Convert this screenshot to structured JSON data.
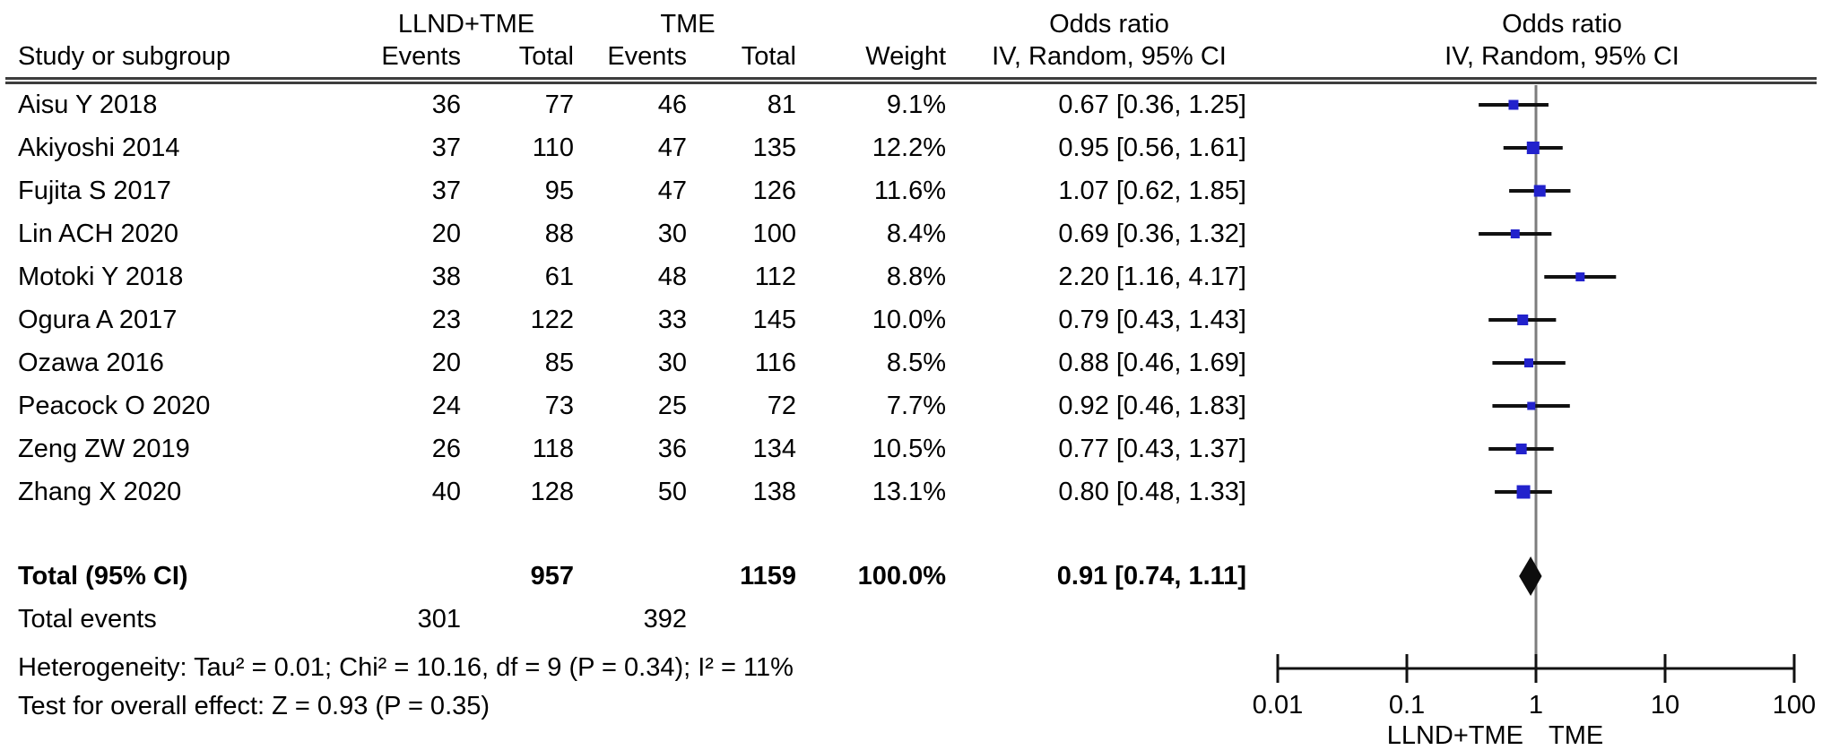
{
  "header": {
    "study_col": "Study or subgroup",
    "group1": "LLND+TME",
    "group2": "TME",
    "events_col": "Events",
    "total_col": "Total",
    "weight_col": "Weight",
    "or_title": "Odds ratio",
    "or_subtitle": "IV, Random, 95% CI",
    "plot_title": "Odds ratio",
    "plot_subtitle": "IV, Random, 95% CI"
  },
  "chart_data": {
    "type": "scatter",
    "subtype": "forest_plot",
    "effect_measure": "Odds ratio, IV, Random, 95% CI",
    "x_scale": "log10",
    "xlim": [
      0.01,
      100
    ],
    "x_ticks": [
      0.01,
      0.1,
      1,
      10,
      100
    ],
    "x_tick_labels": [
      "0.01",
      "0.1",
      "1",
      "10",
      "100"
    ],
    "favours_left": "LLND+TME",
    "favours_right": "TME",
    "studies": [
      {
        "name": "Aisu Y 2018",
        "events1": 36,
        "total1": 77,
        "events2": 46,
        "total2": 81,
        "weight": "9.1%",
        "weight_value": 9.1,
        "or": 0.67,
        "ci_low": 0.36,
        "ci_high": 1.25,
        "or_ci_label": "0.67 [0.36, 1.25]"
      },
      {
        "name": "Akiyoshi 2014",
        "events1": 37,
        "total1": 110,
        "events2": 47,
        "total2": 135,
        "weight": "12.2%",
        "weight_value": 12.2,
        "or": 0.95,
        "ci_low": 0.56,
        "ci_high": 1.61,
        "or_ci_label": "0.95 [0.56, 1.61]"
      },
      {
        "name": "Fujita S 2017",
        "events1": 37,
        "total1": 95,
        "events2": 47,
        "total2": 126,
        "weight": "11.6%",
        "weight_value": 11.6,
        "or": 1.07,
        "ci_low": 0.62,
        "ci_high": 1.85,
        "or_ci_label": "1.07 [0.62, 1.85]"
      },
      {
        "name": "Lin ACH 2020",
        "events1": 20,
        "total1": 88,
        "events2": 30,
        "total2": 100,
        "weight": "8.4%",
        "weight_value": 8.4,
        "or": 0.69,
        "ci_low": 0.36,
        "ci_high": 1.32,
        "or_ci_label": "0.69 [0.36, 1.32]"
      },
      {
        "name": "Motoki Y 2018",
        "events1": 38,
        "total1": 61,
        "events2": 48,
        "total2": 112,
        "weight": "8.8%",
        "weight_value": 8.8,
        "or": 2.2,
        "ci_low": 1.16,
        "ci_high": 4.17,
        "or_ci_label": "2.20 [1.16, 4.17]"
      },
      {
        "name": "Ogura A 2017",
        "events1": 23,
        "total1": 122,
        "events2": 33,
        "total2": 145,
        "weight": "10.0%",
        "weight_value": 10.0,
        "or": 0.79,
        "ci_low": 0.43,
        "ci_high": 1.43,
        "or_ci_label": "0.79 [0.43, 1.43]"
      },
      {
        "name": "Ozawa 2016",
        "events1": 20,
        "total1": 85,
        "events2": 30,
        "total2": 116,
        "weight": "8.5%",
        "weight_value": 8.5,
        "or": 0.88,
        "ci_low": 0.46,
        "ci_high": 1.69,
        "or_ci_label": "0.88 [0.46, 1.69]"
      },
      {
        "name": "Peacock O 2020",
        "events1": 24,
        "total1": 73,
        "events2": 25,
        "total2": 72,
        "weight": "7.7%",
        "weight_value": 7.7,
        "or": 0.92,
        "ci_low": 0.46,
        "ci_high": 1.83,
        "or_ci_label": "0.92 [0.46, 1.83]"
      },
      {
        "name": "Zeng ZW 2019",
        "events1": 26,
        "total1": 118,
        "events2": 36,
        "total2": 134,
        "weight": "10.5%",
        "weight_value": 10.5,
        "or": 0.77,
        "ci_low": 0.43,
        "ci_high": 1.37,
        "or_ci_label": "0.77 [0.43, 1.37]"
      },
      {
        "name": "Zhang X 2020",
        "events1": 40,
        "total1": 128,
        "events2": 50,
        "total2": 138,
        "weight": "13.1%",
        "weight_value": 13.1,
        "or": 0.8,
        "ci_low": 0.48,
        "ci_high": 1.33,
        "or_ci_label": "0.80 [0.48, 1.33]"
      }
    ],
    "total": {
      "label": "Total (95% CI)",
      "total1": 957,
      "total2": 1159,
      "weight": "100.0%",
      "or": 0.91,
      "ci_low": 0.74,
      "ci_high": 1.11,
      "or_ci_label": "0.91 [0.74, 1.11]"
    },
    "total_events": {
      "label": "Total events",
      "events1": 301,
      "events2": 392
    }
  },
  "footer": {
    "heterogeneity": "Heterogeneity: Tau² = 0.01; Chi² = 10.16, df = 9 (P = 0.34); I² = 11%",
    "overall_effect": "Test for overall effect: Z = 0.93 (P = 0.35)"
  },
  "colors": {
    "square": "#2222cc",
    "ci_line": "#111111",
    "diamond": "#0d0d0d",
    "no_effect_line": "#7d7d7d",
    "axis": "#111111",
    "text": "#000000",
    "rule": "#3d3d3d"
  }
}
